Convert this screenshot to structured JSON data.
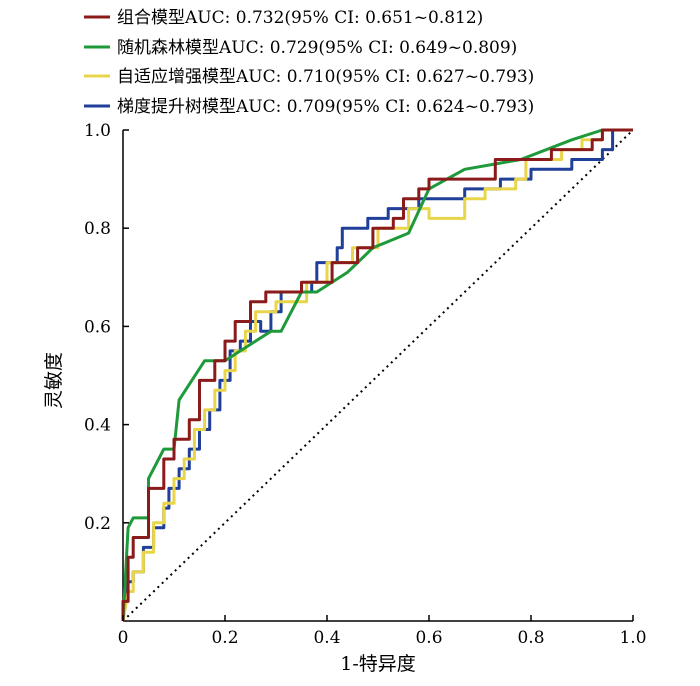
{
  "chart_data": {
    "type": "line",
    "title": "",
    "xlabel": "1-特异度",
    "ylabel": "灵敏度",
    "xlim": [
      0,
      1
    ],
    "ylim": [
      0,
      1
    ],
    "xticks": [
      "0",
      "0.2",
      "0.4",
      "0.6",
      "0.8",
      "1.0"
    ],
    "yticks": [
      "0.2",
      "0.4",
      "0.6",
      "0.8",
      "1.0"
    ],
    "grid": false,
    "legend_position": "top",
    "reference_line": {
      "style": "dotted",
      "points": [
        [
          0,
          0
        ],
        [
          1,
          1
        ]
      ]
    },
    "series": [
      {
        "name": "组合模型AUC: 0.732(95% CI: 0.651~0.812)",
        "color": "#8b1a1a",
        "points": [
          [
            0,
            0
          ],
          [
            0,
            0.04
          ],
          [
            0.01,
            0.04
          ],
          [
            0.01,
            0.13
          ],
          [
            0.02,
            0.13
          ],
          [
            0.02,
            0.17
          ],
          [
            0.05,
            0.17
          ],
          [
            0.05,
            0.27
          ],
          [
            0.08,
            0.27
          ],
          [
            0.08,
            0.33
          ],
          [
            0.1,
            0.33
          ],
          [
            0.1,
            0.37
          ],
          [
            0.13,
            0.37
          ],
          [
            0.13,
            0.41
          ],
          [
            0.15,
            0.41
          ],
          [
            0.15,
            0.49
          ],
          [
            0.18,
            0.49
          ],
          [
            0.18,
            0.53
          ],
          [
            0.2,
            0.53
          ],
          [
            0.2,
            0.57
          ],
          [
            0.22,
            0.57
          ],
          [
            0.22,
            0.61
          ],
          [
            0.25,
            0.61
          ],
          [
            0.25,
            0.65
          ],
          [
            0.28,
            0.65
          ],
          [
            0.28,
            0.67
          ],
          [
            0.35,
            0.67
          ],
          [
            0.35,
            0.69
          ],
          [
            0.41,
            0.69
          ],
          [
            0.41,
            0.73
          ],
          [
            0.46,
            0.73
          ],
          [
            0.46,
            0.76
          ],
          [
            0.49,
            0.76
          ],
          [
            0.49,
            0.8
          ],
          [
            0.53,
            0.8
          ],
          [
            0.53,
            0.82
          ],
          [
            0.55,
            0.82
          ],
          [
            0.55,
            0.86
          ],
          [
            0.58,
            0.86
          ],
          [
            0.58,
            0.88
          ],
          [
            0.6,
            0.88
          ],
          [
            0.6,
            0.9
          ],
          [
            0.73,
            0.9
          ],
          [
            0.73,
            0.94
          ],
          [
            0.84,
            0.94
          ],
          [
            0.84,
            0.96
          ],
          [
            0.92,
            0.96
          ],
          [
            0.92,
            0.98
          ],
          [
            0.94,
            0.98
          ],
          [
            0.94,
            1.0
          ],
          [
            1.0,
            1.0
          ]
        ]
      },
      {
        "name": "随机森林模型AUC: 0.729(95% CI: 0.649~0.809)",
        "color": "#1f9a3a",
        "points": [
          [
            0,
            0
          ],
          [
            0.01,
            0.19
          ],
          [
            0.02,
            0.21
          ],
          [
            0.05,
            0.21
          ],
          [
            0.05,
            0.29
          ],
          [
            0.07,
            0.33
          ],
          [
            0.08,
            0.35
          ],
          [
            0.1,
            0.35
          ],
          [
            0.11,
            0.45
          ],
          [
            0.16,
            0.53
          ],
          [
            0.2,
            0.53
          ],
          [
            0.23,
            0.55
          ],
          [
            0.29,
            0.59
          ],
          [
            0.31,
            0.59
          ],
          [
            0.33,
            0.63
          ],
          [
            0.35,
            0.67
          ],
          [
            0.38,
            0.67
          ],
          [
            0.44,
            0.71
          ],
          [
            0.49,
            0.76
          ],
          [
            0.56,
            0.79
          ],
          [
            0.6,
            0.88
          ],
          [
            0.67,
            0.92
          ],
          [
            0.78,
            0.94
          ],
          [
            0.88,
            0.98
          ],
          [
            0.94,
            1.0
          ],
          [
            1.0,
            1.0
          ]
        ]
      },
      {
        "name": "自适应增强模型AUC: 0.710(95% CI: 0.627~0.793)",
        "color": "#e8d54a",
        "points": [
          [
            0,
            0
          ],
          [
            0.01,
            0.06
          ],
          [
            0.02,
            0.06
          ],
          [
            0.02,
            0.1
          ],
          [
            0.04,
            0.1
          ],
          [
            0.04,
            0.14
          ],
          [
            0.06,
            0.14
          ],
          [
            0.06,
            0.2
          ],
          [
            0.08,
            0.2
          ],
          [
            0.08,
            0.24
          ],
          [
            0.1,
            0.24
          ],
          [
            0.1,
            0.29
          ],
          [
            0.12,
            0.29
          ],
          [
            0.12,
            0.33
          ],
          [
            0.14,
            0.33
          ],
          [
            0.14,
            0.39
          ],
          [
            0.16,
            0.39
          ],
          [
            0.16,
            0.43
          ],
          [
            0.18,
            0.43
          ],
          [
            0.18,
            0.47
          ],
          [
            0.2,
            0.47
          ],
          [
            0.2,
            0.51
          ],
          [
            0.22,
            0.51
          ],
          [
            0.22,
            0.55
          ],
          [
            0.24,
            0.55
          ],
          [
            0.24,
            0.59
          ],
          [
            0.26,
            0.59
          ],
          [
            0.26,
            0.63
          ],
          [
            0.3,
            0.63
          ],
          [
            0.3,
            0.65
          ],
          [
            0.36,
            0.65
          ],
          [
            0.36,
            0.69
          ],
          [
            0.4,
            0.69
          ],
          [
            0.4,
            0.73
          ],
          [
            0.45,
            0.73
          ],
          [
            0.45,
            0.76
          ],
          [
            0.5,
            0.76
          ],
          [
            0.5,
            0.8
          ],
          [
            0.56,
            0.8
          ],
          [
            0.56,
            0.84
          ],
          [
            0.6,
            0.84
          ],
          [
            0.6,
            0.82
          ],
          [
            0.67,
            0.82
          ],
          [
            0.67,
            0.86
          ],
          [
            0.71,
            0.86
          ],
          [
            0.71,
            0.88
          ],
          [
            0.77,
            0.88
          ],
          [
            0.77,
            0.9
          ],
          [
            0.79,
            0.9
          ],
          [
            0.79,
            0.94
          ],
          [
            0.86,
            0.94
          ],
          [
            0.86,
            0.96
          ],
          [
            0.9,
            0.96
          ],
          [
            0.9,
            0.98
          ],
          [
            0.94,
            0.98
          ],
          [
            0.94,
            1.0
          ],
          [
            1.0,
            1.0
          ]
        ]
      },
      {
        "name": "梯度提升树模型AUC: 0.709(95% CI: 0.624~0.793)",
        "color": "#1f3f99",
        "points": [
          [
            0,
            0
          ],
          [
            0.01,
            0.08
          ],
          [
            0.02,
            0.08
          ],
          [
            0.02,
            0.1
          ],
          [
            0.04,
            0.1
          ],
          [
            0.04,
            0.15
          ],
          [
            0.06,
            0.15
          ],
          [
            0.06,
            0.19
          ],
          [
            0.08,
            0.19
          ],
          [
            0.08,
            0.23
          ],
          [
            0.09,
            0.23
          ],
          [
            0.09,
            0.27
          ],
          [
            0.11,
            0.27
          ],
          [
            0.11,
            0.31
          ],
          [
            0.13,
            0.31
          ],
          [
            0.13,
            0.35
          ],
          [
            0.15,
            0.35
          ],
          [
            0.15,
            0.39
          ],
          [
            0.17,
            0.39
          ],
          [
            0.17,
            0.43
          ],
          [
            0.19,
            0.43
          ],
          [
            0.19,
            0.49
          ],
          [
            0.21,
            0.49
          ],
          [
            0.21,
            0.55
          ],
          [
            0.23,
            0.55
          ],
          [
            0.23,
            0.57
          ],
          [
            0.25,
            0.57
          ],
          [
            0.25,
            0.61
          ],
          [
            0.27,
            0.61
          ],
          [
            0.27,
            0.59
          ],
          [
            0.29,
            0.59
          ],
          [
            0.29,
            0.63
          ],
          [
            0.31,
            0.63
          ],
          [
            0.31,
            0.67
          ],
          [
            0.37,
            0.67
          ],
          [
            0.37,
            0.69
          ],
          [
            0.38,
            0.69
          ],
          [
            0.38,
            0.73
          ],
          [
            0.42,
            0.73
          ],
          [
            0.42,
            0.76
          ],
          [
            0.43,
            0.76
          ],
          [
            0.43,
            0.8
          ],
          [
            0.48,
            0.8
          ],
          [
            0.48,
            0.82
          ],
          [
            0.52,
            0.82
          ],
          [
            0.52,
            0.84
          ],
          [
            0.58,
            0.84
          ],
          [
            0.58,
            0.86
          ],
          [
            0.67,
            0.86
          ],
          [
            0.67,
            0.88
          ],
          [
            0.74,
            0.88
          ],
          [
            0.74,
            0.9
          ],
          [
            0.8,
            0.9
          ],
          [
            0.8,
            0.92
          ],
          [
            0.88,
            0.92
          ],
          [
            0.88,
            0.94
          ],
          [
            0.94,
            0.94
          ],
          [
            0.94,
            0.96
          ],
          [
            0.96,
            0.96
          ],
          [
            0.96,
            1.0
          ],
          [
            1.0,
            1.0
          ]
        ]
      }
    ]
  }
}
